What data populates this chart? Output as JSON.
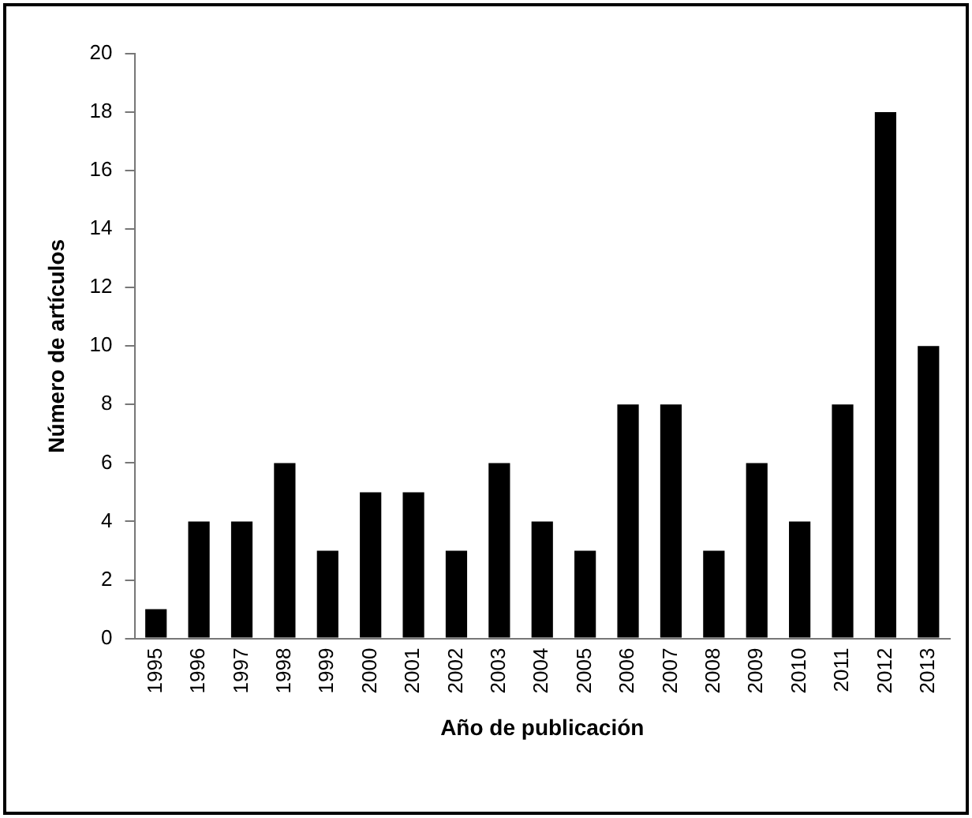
{
  "chart_data": {
    "type": "bar",
    "xlabel": "Año de publicación",
    "ylabel": "Número de artículos",
    "categories": [
      "1995",
      "1996",
      "1997",
      "1998",
      "1999",
      "2000",
      "2001",
      "2002",
      "2003",
      "2004",
      "2005",
      "2006",
      "2007",
      "2008",
      "2009",
      "2010",
      "2011",
      "2012",
      "2013"
    ],
    "values": [
      1,
      4,
      4,
      6,
      3,
      5,
      5,
      3,
      6,
      4,
      3,
      8,
      8,
      3,
      6,
      4,
      8,
      18,
      10
    ],
    "color": "#000000",
    "ylim": [
      0,
      20
    ],
    "yticks": [
      0,
      2,
      4,
      6,
      8,
      10,
      12,
      14,
      16,
      18,
      20
    ],
    "grid": false,
    "legend": false
  }
}
